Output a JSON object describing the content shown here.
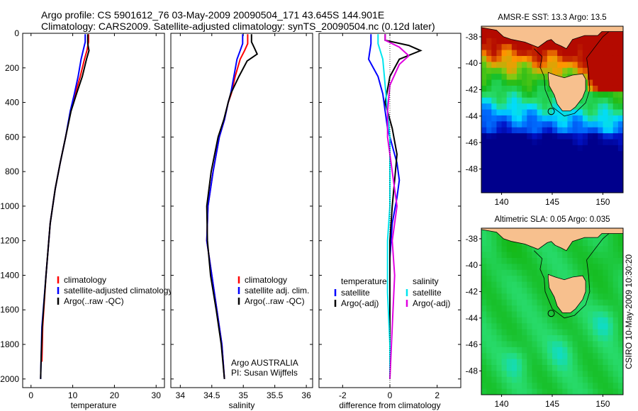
{
  "header": {
    "line1": "Argo profile: CS 5901612_76 03-May-2009 20090504_171 43.645S 144.901E",
    "line2": "Climatology: CARS2009. Satellite-adjusted climatology: synTS_20090504.nc (0.12d later)"
  },
  "colors": {
    "climatology": "#ff0000",
    "satellite": "#0000ff",
    "argo": "#000000",
    "sat_salinity": "#00e5ee",
    "argo_salinity": "#e000e0"
  },
  "side_text": {
    "credit": "CSIRO 10-May-2009 10:30:20"
  },
  "chart_data": [
    {
      "type": "line",
      "xlabel": "temperature",
      "ylabel": "",
      "ylim": [
        2050,
        0
      ],
      "xlim": [
        -2,
        32
      ],
      "xticks": [
        0,
        10,
        20,
        30
      ],
      "yticks": [
        0,
        200,
        400,
        600,
        800,
        1000,
        1200,
        1400,
        1600,
        1800,
        2000
      ],
      "legend": {
        "position": "lower-right",
        "entries": [
          "climatology",
          "satellite-adjusted climatology",
          "Argo(..raw -QC)"
        ]
      },
      "series": [
        {
          "name": "climatology",
          "color": "#ff0000",
          "x": [
            13.8,
            13.8,
            13.4,
            12.8,
            11.8,
            10.6,
            9.5,
            8.3,
            7.0,
            5.8,
            4.6,
            3.6,
            2.8,
            2.6
          ],
          "y": [
            5,
            50,
            100,
            150,
            250,
            350,
            450,
            600,
            750,
            900,
            1100,
            1400,
            1700,
            1900
          ]
        },
        {
          "name": "satellite-adjusted climatology",
          "color": "#0000ff",
          "x": [
            13.0,
            13.0,
            12.5,
            12.0,
            11.3,
            10.4,
            9.4,
            8.3,
            7.0,
            5.8,
            4.6,
            3.6,
            2.6,
            2.4,
            2.3
          ],
          "y": [
            5,
            50,
            100,
            150,
            250,
            350,
            450,
            600,
            750,
            900,
            1100,
            1400,
            1700,
            1900,
            2000
          ]
        },
        {
          "name": "Argo(..raw -QC)",
          "color": "#000000",
          "x": [
            13.6,
            13.6,
            13.9,
            13.3,
            12.3,
            10.9,
            9.6,
            8.3,
            7.0,
            5.8,
            4.6,
            3.6,
            2.7,
            2.4,
            2.3
          ],
          "y": [
            5,
            60,
            100,
            150,
            250,
            350,
            450,
            600,
            750,
            900,
            1100,
            1400,
            1700,
            1900,
            2000
          ]
        }
      ]
    },
    {
      "type": "line",
      "xlabel": "salinity",
      "ylabel": "",
      "ylim": [
        2050,
        0
      ],
      "xlim": [
        33.85,
        36.1
      ],
      "xticks": [
        34,
        34.5,
        35,
        35.5,
        36
      ],
      "legend": {
        "position": "lower-right",
        "entries": [
          "climatology",
          "satellite adj. clim.",
          "Argo(..raw -QC)"
        ]
      },
      "annotation": [
        "Argo AUSTRALIA",
        "PI: Susan Wijffels"
      ],
      "series": [
        {
          "name": "climatology",
          "color": "#ff0000",
          "x": [
            35.07,
            35.07,
            35.02,
            34.95,
            34.87,
            34.81,
            34.76,
            34.7,
            34.62,
            34.52,
            34.44,
            34.42,
            34.5,
            34.58,
            34.66,
            34.7
          ],
          "y": [
            5,
            60,
            100,
            150,
            250,
            350,
            400,
            500,
            600,
            800,
            1000,
            1200,
            1400,
            1600,
            1800,
            2000
          ]
        },
        {
          "name": "satellite adj. clim.",
          "color": "#0000ff",
          "x": [
            34.99,
            34.99,
            34.95,
            34.9,
            34.85,
            34.8,
            34.76,
            34.7,
            34.62,
            34.52,
            34.44,
            34.42,
            34.5,
            34.58,
            34.66,
            34.7
          ],
          "y": [
            5,
            60,
            100,
            150,
            250,
            350,
            400,
            500,
            600,
            800,
            1000,
            1200,
            1400,
            1600,
            1800,
            2000
          ]
        },
        {
          "name": "Argo(..raw -QC)",
          "color": "#000000",
          "x": [
            35.13,
            35.13,
            35.17,
            35.22,
            35.06,
            34.93,
            34.8,
            34.76,
            34.69,
            34.6,
            34.49,
            34.42,
            34.43,
            34.48,
            34.57,
            34.65,
            34.7
          ],
          "y": [
            5,
            50,
            80,
            120,
            160,
            250,
            350,
            400,
            500,
            600,
            800,
            1000,
            1200,
            1400,
            1600,
            1800,
            2000
          ]
        }
      ]
    },
    {
      "type": "line",
      "xlabel": "difference from climatology",
      "ylabel": "",
      "ylim": [
        2050,
        0
      ],
      "xlim": [
        -3,
        3
      ],
      "xticks": [
        -2,
        0,
        2
      ],
      "legend": {
        "position": "lower",
        "groups": [
          {
            "title": "temperature",
            "entries": [
              "satellite",
              "Argo(-adj)"
            ]
          },
          {
            "title": "salinity",
            "entries": [
              "satellite",
              "Argo(-adj)"
            ]
          }
        ]
      },
      "series": [
        {
          "name": "satellite",
          "group": "temperature",
          "color": "#0000ff",
          "x": [
            -0.8,
            -0.8,
            -0.9,
            -0.5,
            -0.3,
            -0.2,
            -0.1,
            0.1,
            0.3,
            0.4,
            0.3,
            0.1,
            0.0,
            0.0,
            0.0,
            0.0
          ],
          "y": [
            5,
            60,
            150,
            250,
            350,
            450,
            550,
            650,
            750,
            850,
            950,
            1100,
            1300,
            1500,
            1800,
            2000
          ]
        },
        {
          "name": "Argo(-adj)",
          "group": "temperature",
          "color": "#000000",
          "x": [
            -0.2,
            -0.2,
            0.8,
            1.3,
            0.4,
            0.0,
            -0.2,
            0.1,
            0.3,
            0.2,
            0.1,
            0.0,
            0.0,
            0.0,
            0.0
          ],
          "y": [
            5,
            40,
            70,
            100,
            150,
            250,
            400,
            550,
            700,
            850,
            1000,
            1200,
            1500,
            1800,
            2000
          ]
        },
        {
          "name": "satellite",
          "group": "salinity",
          "color": "#00e5ee",
          "x": [
            -0.5,
            -0.5,
            -0.3,
            -0.2,
            -0.1,
            0.0,
            0.0,
            0.0,
            -0.1,
            -0.1,
            0.0,
            0.0
          ],
          "y": [
            5,
            60,
            150,
            300,
            450,
            600,
            800,
            1000,
            1200,
            1500,
            1800,
            2000
          ]
        },
        {
          "name": "Argo(-adj)",
          "group": "salinity",
          "color": "#e000e0",
          "x": [
            -0.2,
            -0.2,
            0.4,
            0.8,
            0.4,
            0.0,
            -0.1,
            -0.1,
            0.1,
            0.3,
            0.1,
            0.2,
            0.1,
            0.0
          ],
          "y": [
            5,
            40,
            80,
            130,
            180,
            300,
            450,
            600,
            800,
            1000,
            1200,
            1400,
            1700,
            2000
          ]
        }
      ]
    },
    {
      "type": "heatmap",
      "title": "AMSR-E SST: 13.3 Argo: 13.5",
      "xlim": [
        138,
        152
      ],
      "ylim": [
        -49.8,
        -37.2
      ],
      "xticks": [
        140,
        145,
        150
      ],
      "yticks": [
        -38,
        -40,
        -42,
        -44,
        -46,
        -48
      ],
      "float_position": [
        144.901,
        -43.645
      ],
      "field": "sst"
    },
    {
      "type": "heatmap",
      "title": "Altimetric SLA: 0.05 Argo: 0.035",
      "xlim": [
        138,
        152
      ],
      "ylim": [
        -49.8,
        -37.2
      ],
      "xticks": [
        140,
        145,
        150
      ],
      "yticks": [
        -38,
        -40,
        -42,
        -44,
        -46,
        -48
      ],
      "float_position": [
        144.901,
        -43.645
      ],
      "field": "sla"
    }
  ]
}
